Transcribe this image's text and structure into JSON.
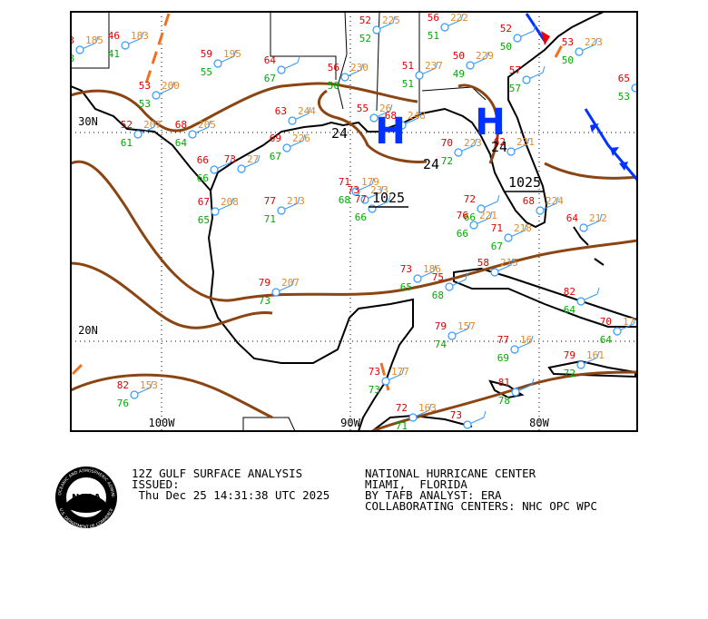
{
  "map": {
    "lat_labels": [
      "30N",
      "20N"
    ],
    "lon_labels": [
      "100W",
      "90W",
      "80W"
    ],
    "highs": [
      "H",
      "H"
    ],
    "pressure_labels": [
      "24",
      "24",
      "24",
      "1025",
      "1025"
    ],
    "stations": [
      {
        "temp": "3",
        "pressure": "185",
        "dew": "8"
      },
      {
        "temp": "46",
        "pressure": "183",
        "dew": "41"
      },
      {
        "temp": "59",
        "pressure": "195",
        "dew": "55"
      },
      {
        "temp": "53",
        "pressure": "200",
        "dew": "53"
      },
      {
        "temp": "52",
        "pressure": "207",
        "dew": "61"
      },
      {
        "temp": "68",
        "pressure": "205",
        "dew": "64"
      },
      {
        "temp": "64",
        "dew": "67"
      },
      {
        "temp": "52",
        "pressure": "225",
        "dew": "52"
      },
      {
        "temp": "56",
        "pressure": "222",
        "dew": "51"
      },
      {
        "temp": "56",
        "pressure": "230",
        "dew": "50"
      },
      {
        "temp": "51",
        "pressure": "237",
        "dew": "51"
      },
      {
        "temp": "50",
        "pressure": "229",
        "dew": "49"
      },
      {
        "temp": "52",
        "dew": "50"
      },
      {
        "temp": "53",
        "pressure": "223",
        "dew": "50"
      },
      {
        "temp": "57",
        "dew": "57"
      },
      {
        "temp": "65",
        "dew": "53"
      },
      {
        "temp": "63",
        "pressure": "244"
      },
      {
        "temp": "69",
        "pressure": "226",
        "dew": "67"
      },
      {
        "temp": "55",
        "pressure": "26"
      },
      {
        "temp": "68",
        "pressure": "248"
      },
      {
        "temp": "70",
        "pressure": "223",
        "dew": "72"
      },
      {
        "temp": "62",
        "pressure": "231"
      },
      {
        "temp": "66",
        "dew": "66"
      },
      {
        "temp": "73",
        "pressure": "27"
      },
      {
        "temp": "77",
        "pressure": "213",
        "dew": "71"
      },
      {
        "temp": "67",
        "pressure": "208",
        "dew": "65"
      },
      {
        "temp": "71",
        "pressure": "179",
        "dew": "68"
      },
      {
        "temp": "73",
        "pressure": "233"
      },
      {
        "temp": "77",
        "dew": "66"
      },
      {
        "temp": "72",
        "dew": "66"
      },
      {
        "temp": "76",
        "pressure": "221",
        "dew": "66"
      },
      {
        "temp": "71",
        "pressure": "218",
        "dew": "67"
      },
      {
        "temp": "68",
        "pressure": "224"
      },
      {
        "temp": "64",
        "pressure": "212"
      },
      {
        "temp": "79",
        "pressure": "207",
        "dew": "73"
      },
      {
        "temp": "73",
        "pressure": "186",
        "dew": "65"
      },
      {
        "temp": "75",
        "dew": "68"
      },
      {
        "temp": "58",
        "pressure": "215"
      },
      {
        "temp": "82",
        "dew": "64"
      },
      {
        "temp": "70",
        "pressure": "17",
        "dew": "64"
      },
      {
        "temp": "79",
        "pressure": "157",
        "dew": "74"
      },
      {
        "temp": "77",
        "pressure": "16",
        "dew": "69"
      },
      {
        "temp": "79",
        "pressure": "161",
        "dew": "72"
      },
      {
        "temp": "81",
        "dew": "78"
      },
      {
        "temp": "82",
        "pressure": "153",
        "dew": "76"
      },
      {
        "temp": "73",
        "pressure": "177",
        "dew": "73"
      },
      {
        "temp": "72",
        "pressure": "163",
        "dew": "71"
      },
      {
        "temp": "73"
      }
    ]
  },
  "footer": {
    "logo": {
      "text": "NOAA",
      "ring_top": "NATIONAL OCEANIC AND ATMOSPHERIC ADMINISTRATION",
      "ring_bottom": "U.S. DEPARTMENT OF COMMERCE"
    },
    "left": [
      "12Z GULF SURFACE ANALYSIS",
      "ISSUED:",
      " Thu Dec 25 14:31:38 UTC 2025"
    ],
    "right": [
      "NATIONAL HURRICANE CENTER",
      "MIAMI,  FLORIDA",
      "BY TAFB ANALYST: ERA",
      "COLLABORATING CENTERS: NHC OPC WPC"
    ]
  }
}
